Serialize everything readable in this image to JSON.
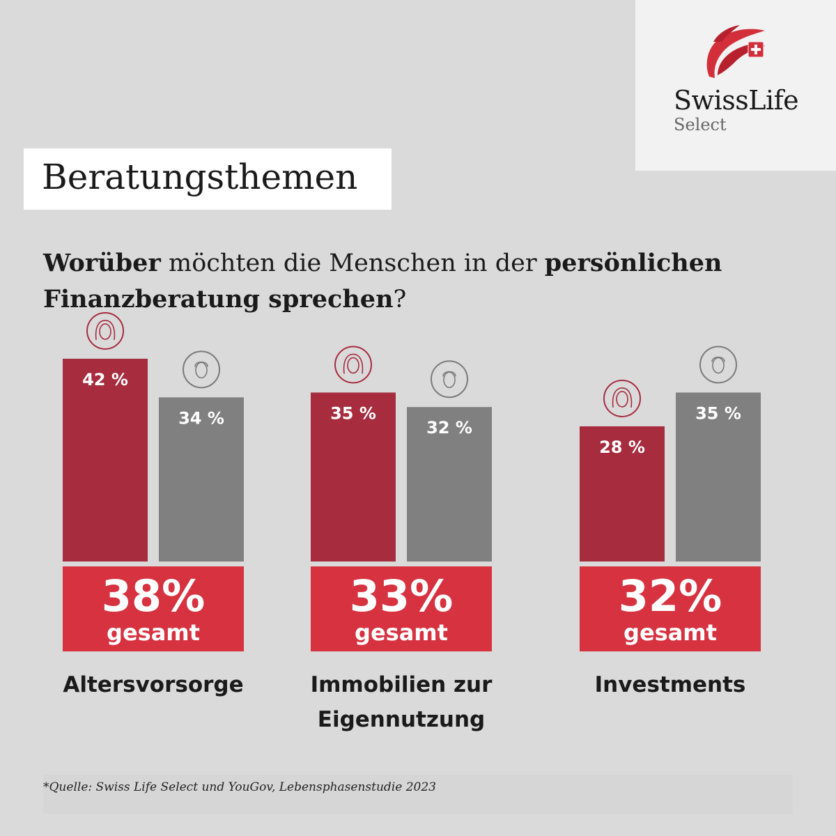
{
  "logo": {
    "brand": "SwissLife",
    "sub": "Select",
    "brand_color": "#d32f3a",
    "icon": "swisslife-flag-icon"
  },
  "title": "Beratungsthemen",
  "question": {
    "part1_bold": "Worüber",
    "part2": " möchten die Menschen in der ",
    "part3_bold": "persönlichen Finanzberatung sprechen",
    "part4": "?"
  },
  "chart_data": {
    "type": "bar",
    "categories": [
      "Altersvorsorge",
      "Immobilien zur Eigennutzung",
      "Investments"
    ],
    "series": [
      {
        "icon": "woman-icon",
        "values": [
          42,
          35,
          28
        ],
        "labels": [
          "42 %",
          "35 %",
          "28 %"
        ],
        "color": "#a62c3e"
      },
      {
        "icon": "man-icon",
        "values": [
          34,
          32,
          35
        ],
        "labels": [
          "34 %",
          "32 %",
          "35 %"
        ],
        "color": "#808080"
      }
    ],
    "totals": [
      38,
      33,
      32
    ],
    "total_labels": [
      "38%",
      "33%",
      "32%"
    ],
    "total_suffix": "gesamt",
    "category_lines": [
      [
        "Altersvorsorge"
      ],
      [
        "Immobilien zur",
        "Eigennutzung"
      ],
      [
        "Investments"
      ]
    ],
    "total_color": "#d63240"
  },
  "source": "*Quelle: Swiss Life Select und YouGov, Lebensphasenstudie 2023"
}
